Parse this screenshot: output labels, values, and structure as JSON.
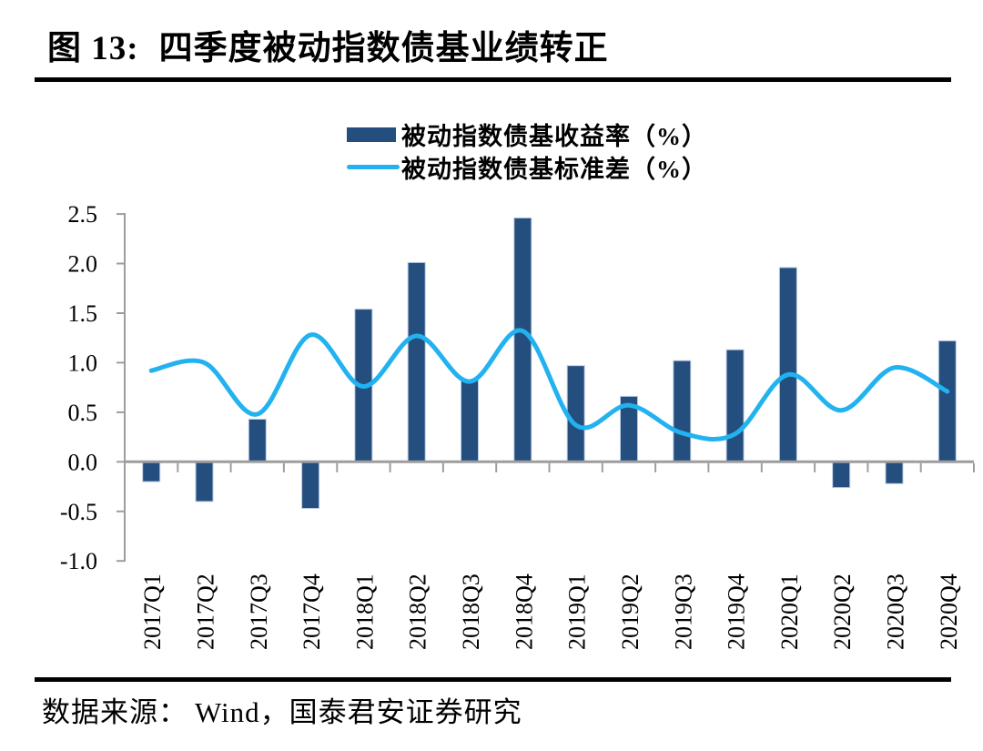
{
  "header": {
    "figure_label": "图 13:",
    "title": "四季度被动指数债基业绩转正"
  },
  "footer": {
    "source_label": "数据来源：",
    "source_text": "Wind，国泰君安证券研究"
  },
  "chart_data": {
    "type": "bar",
    "subtype": "bar+line combo",
    "categories": [
      "2017Q1",
      "2017Q2",
      "2017Q3",
      "2017Q4",
      "2018Q1",
      "2018Q2",
      "2018Q3",
      "2018Q4",
      "2019Q1",
      "2019Q2",
      "2019Q3",
      "2019Q4",
      "2020Q1",
      "2020Q2",
      "2020Q3",
      "2020Q4"
    ],
    "series": [
      {
        "name": "被动指数债基收益率（%）",
        "type": "bar",
        "color": "#234E7E",
        "values": [
          -0.2,
          -0.4,
          0.43,
          -0.47,
          1.54,
          2.01,
          0.82,
          2.46,
          0.97,
          0.66,
          1.02,
          1.13,
          1.96,
          -0.26,
          -0.22,
          1.22
        ]
      },
      {
        "name": "被动指数债基标准差（%）",
        "type": "line",
        "color": "#22B2F0",
        "values": [
          0.92,
          1.0,
          0.48,
          1.28,
          0.76,
          1.27,
          0.81,
          1.32,
          0.37,
          0.57,
          0.29,
          0.28,
          0.88,
          0.52,
          0.95,
          0.71
        ]
      }
    ],
    "title": "",
    "xlabel": "",
    "ylabel": "",
    "ylim": [
      -1.0,
      2.5
    ],
    "yticks": [
      2.5,
      2.0,
      1.5,
      1.0,
      0.5,
      0.0,
      -0.5,
      -1.0
    ],
    "ytick_labels": [
      "2.5",
      "2.0",
      "1.5",
      "1.0",
      "0.5",
      "0.0",
      "-0.5",
      "-1.0"
    ],
    "grid": false,
    "legend_position": "top-center",
    "axis_color": "#9d9d9d",
    "bar_edge_color": "#b9cbe3"
  }
}
